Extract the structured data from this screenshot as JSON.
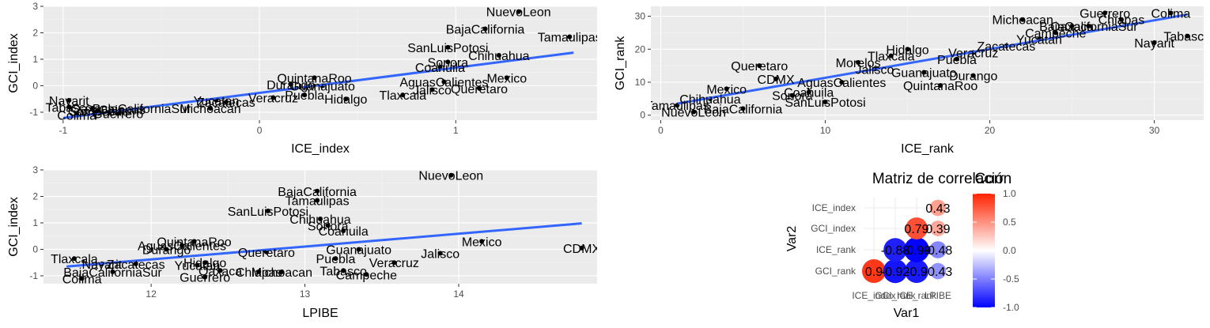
{
  "chart_data": [
    {
      "type": "scatter",
      "xlabel": "ICE_index",
      "ylabel": "GCI_index",
      "xlim": [
        -1.1,
        1.72
      ],
      "ylim": [
        -1.3,
        3.0
      ],
      "xticks": [
        -1,
        0,
        1
      ],
      "yticks": [
        -1,
        0,
        1,
        2,
        3
      ],
      "fit_line": {
        "x": [
          -1.0,
          1.6
        ],
        "y": [
          -1.22,
          1.25
        ]
      },
      "points": [
        {
          "label": "NuevoLeon",
          "x": 1.32,
          "y": 2.8
        },
        {
          "label": "BajaCalifornia",
          "x": 1.15,
          "y": 2.15
        },
        {
          "label": "Tamaulipas",
          "x": 1.58,
          "y": 1.85
        },
        {
          "label": "SanLuisPotosi",
          "x": 0.96,
          "y": 1.45
        },
        {
          "label": "Chihuahua",
          "x": 1.22,
          "y": 1.15
        },
        {
          "label": "Sonora",
          "x": 0.96,
          "y": 0.9
        },
        {
          "label": "Coahuila",
          "x": 0.92,
          "y": 0.7
        },
        {
          "label": "Mexico",
          "x": 1.26,
          "y": 0.3
        },
        {
          "label": "AguasCalientes",
          "x": 0.94,
          "y": 0.15
        },
        {
          "label": "Jalisco",
          "x": 0.88,
          "y": -0.15
        },
        {
          "label": "Queretaro",
          "x": 1.12,
          "y": -0.1
        },
        {
          "label": "Tlaxcala",
          "x": 0.73,
          "y": -0.35
        },
        {
          "label": "QuintanaRoo",
          "x": 0.28,
          "y": 0.3
        },
        {
          "label": "Durango",
          "x": 0.16,
          "y": 0.05
        },
        {
          "label": "Guanajuato",
          "x": 0.32,
          "y": 0.0
        },
        {
          "label": "Puebla",
          "x": 0.23,
          "y": -0.35
        },
        {
          "label": "Hidalgo",
          "x": 0.44,
          "y": -0.5
        },
        {
          "label": "Veracruz",
          "x": 0.07,
          "y": -0.45
        },
        {
          "label": "Yucatan",
          "x": -0.22,
          "y": -0.55
        },
        {
          "label": "Zacatecas",
          "x": -0.17,
          "y": -0.62
        },
        {
          "label": "Michoacan",
          "x": -0.25,
          "y": -0.85
        },
        {
          "label": "Nayarit",
          "x": -0.97,
          "y": -0.55
        },
        {
          "label": "Tabasco",
          "x": -0.97,
          "y": -0.8
        },
        {
          "label": "Oaxaca",
          "x": -0.85,
          "y": -0.85
        },
        {
          "label": "BajaCaliforniaSur",
          "x": -0.6,
          "y": -0.85
        },
        {
          "label": "Chiapas",
          "x": -0.7,
          "y": -0.9
        },
        {
          "label": "Campeche",
          "x": -0.82,
          "y": -0.95
        },
        {
          "label": "Colima",
          "x": -0.93,
          "y": -1.1
        },
        {
          "label": "Guerrero",
          "x": -0.72,
          "y": -1.05
        }
      ]
    },
    {
      "type": "scatter",
      "xlabel": "ICE_rank",
      "ylabel": "GCI_rank",
      "xlim": [
        -0.6,
        33.0
      ],
      "ylim": [
        -1.5,
        33.0
      ],
      "xticks": [
        0,
        10,
        20,
        30
      ],
      "yticks": [
        0,
        10,
        20,
        30
      ],
      "fit_line": {
        "x": [
          1,
          32
        ],
        "y": [
          3.5,
          30.5
        ]
      },
      "points": [
        {
          "label": "Guerrero",
          "x": 27,
          "y": 31
        },
        {
          "label": "Colima",
          "x": 31,
          "y": 31
        },
        {
          "label": "Chiapas",
          "x": 28,
          "y": 29
        },
        {
          "label": "Michoacan",
          "x": 22,
          "y": 29
        },
        {
          "label": "Oaxaca",
          "x": 25,
          "y": 27
        },
        {
          "label": "BajaCaliforniaSur",
          "x": 26,
          "y": 27
        },
        {
          "label": "Campeche",
          "x": 24,
          "y": 25
        },
        {
          "label": "Tabasco",
          "x": 32,
          "y": 24
        },
        {
          "label": "Nayarit",
          "x": 30,
          "y": 22
        },
        {
          "label": "Yucatan",
          "x": 23,
          "y": 23
        },
        {
          "label": "Zacatecas",
          "x": 21,
          "y": 21
        },
        {
          "label": "Hidalgo",
          "x": 15,
          "y": 20
        },
        {
          "label": "Veracruz",
          "x": 19,
          "y": 19
        },
        {
          "label": "Puebla",
          "x": 18,
          "y": 17
        },
        {
          "label": "Tlaxcala",
          "x": 14,
          "y": 18
        },
        {
          "label": "Morelos",
          "x": 12,
          "y": 16
        },
        {
          "label": "Jalisco",
          "x": 13,
          "y": 14
        },
        {
          "label": "Guanajuato",
          "x": 16,
          "y": 13
        },
        {
          "label": "Durango",
          "x": 19,
          "y": 12
        },
        {
          "label": "Queretaro",
          "x": 6,
          "y": 15
        },
        {
          "label": "CDMX",
          "x": 7,
          "y": 11
        },
        {
          "label": "AguasCalientes",
          "x": 11,
          "y": 10
        },
        {
          "label": "QuintanaRoo",
          "x": 17,
          "y": 9
        },
        {
          "label": "Mexico",
          "x": 4,
          "y": 8
        },
        {
          "label": "Coahuila",
          "x": 9,
          "y": 7
        },
        {
          "label": "Sonora",
          "x": 8,
          "y": 6
        },
        {
          "label": "Chihuahua",
          "x": 3,
          "y": 5
        },
        {
          "label": "SanLuisPotosi",
          "x": 10,
          "y": 4
        },
        {
          "label": "Tamaulipas",
          "x": 1,
          "y": 3
        },
        {
          "label": "BajaCalifornia",
          "x": 5,
          "y": 2
        },
        {
          "label": "NuevoLeon",
          "x": 2,
          "y": 1
        }
      ]
    },
    {
      "type": "scatter",
      "xlabel": "LPIBE",
      "ylabel": "GCI_index",
      "xlim": [
        11.3,
        14.9
      ],
      "ylim": [
        -1.3,
        3.0
      ],
      "xticks": [
        12,
        13,
        14
      ],
      "yticks": [
        -1,
        0,
        1,
        2,
        3
      ],
      "fit_line": {
        "x": [
          11.45,
          14.8
        ],
        "y": [
          -0.65,
          0.98
        ]
      },
      "points": [
        {
          "label": "NuevoLeon",
          "x": 13.95,
          "y": 2.8
        },
        {
          "label": "BajaCalifornia",
          "x": 13.08,
          "y": 2.2
        },
        {
          "label": "Tamaulipas",
          "x": 13.08,
          "y": 1.85
        },
        {
          "label": "SanLuisPotosi",
          "x": 12.76,
          "y": 1.45
        },
        {
          "label": "Chihuahua",
          "x": 13.1,
          "y": 1.15
        },
        {
          "label": "Sonora",
          "x": 13.15,
          "y": 0.9
        },
        {
          "label": "Coahuila",
          "x": 13.25,
          "y": 0.7
        },
        {
          "label": "Mexico",
          "x": 14.15,
          "y": 0.3
        },
        {
          "label": "CDMX",
          "x": 14.8,
          "y": 0.05
        },
        {
          "label": "Jalisco",
          "x": 13.88,
          "y": -0.15
        },
        {
          "label": "QuintanaRoo",
          "x": 12.28,
          "y": 0.3
        },
        {
          "label": "AguasCalientes",
          "x": 12.2,
          "y": 0.15
        },
        {
          "label": "Durango",
          "x": 12.1,
          "y": 0.0
        },
        {
          "label": "Guanajuato",
          "x": 13.35,
          "y": 0.0
        },
        {
          "label": "Queretaro",
          "x": 12.75,
          "y": -0.1
        },
        {
          "label": "Puebla",
          "x": 13.2,
          "y": -0.35
        },
        {
          "label": "Veracruz",
          "x": 13.58,
          "y": -0.5
        },
        {
          "label": "Hidalgo",
          "x": 12.35,
          "y": -0.5
        },
        {
          "label": "Tlaxcala",
          "x": 11.5,
          "y": -0.35
        },
        {
          "label": "Zacatecas",
          "x": 11.9,
          "y": -0.55
        },
        {
          "label": "Nayarit",
          "x": 11.68,
          "y": -0.55
        },
        {
          "label": "Yucatan",
          "x": 12.3,
          "y": -0.6
        },
        {
          "label": "Tabasco",
          "x": 13.25,
          "y": -0.8
        },
        {
          "label": "Oaxaca",
          "x": 12.45,
          "y": -0.8
        },
        {
          "label": "Chiapas",
          "x": 12.7,
          "y": -0.85
        },
        {
          "label": "Michoacan",
          "x": 12.85,
          "y": -0.85
        },
        {
          "label": "BajaCaliforniaSur",
          "x": 11.75,
          "y": -0.85
        },
        {
          "label": "Campeche",
          "x": 13.4,
          "y": -0.95
        },
        {
          "label": "Colima",
          "x": 11.55,
          "y": -1.1
        },
        {
          "label": "Guerrero",
          "x": 12.35,
          "y": -1.05
        }
      ]
    },
    {
      "type": "heatmap",
      "title": "Matriz de correlación",
      "xlabel": "Var1",
      "ylabel": "Var2",
      "legend_title": "Corr",
      "legend_ticks": [
        "1.0",
        "0.5",
        "0.0",
        "-0.5",
        "-1.0"
      ],
      "legend_range": [
        -1.0,
        1.0
      ],
      "legend_colors": {
        "high": "#ff2200",
        "mid": "#ffffff",
        "low": "#0000ff"
      },
      "var1_labels": [
        "ICE_index",
        "GCI_rank",
        "ICE_rank",
        "LPIBE"
      ],
      "var2_labels": [
        "GCI_rank",
        "ICE_rank",
        "GCI_index",
        "ICE_index"
      ],
      "cells": [
        {
          "row": 0,
          "col": 0,
          "value": 0.9,
          "label": "0.9"
        },
        {
          "row": 0,
          "col": 1,
          "value": -0.92,
          "label": "-0.92"
        },
        {
          "row": 0,
          "col": 2,
          "value": -0.9,
          "label": "-0.9"
        },
        {
          "row": 0,
          "col": 3,
          "value": -0.43,
          "label": "-0.43"
        },
        {
          "row": 1,
          "col": 1,
          "value": -0.88,
          "label": "-0.88"
        },
        {
          "row": 1,
          "col": 2,
          "value": -0.99,
          "label": "-0.99"
        },
        {
          "row": 1,
          "col": 3,
          "value": -0.48,
          "label": "-0.48"
        },
        {
          "row": 2,
          "col": 2,
          "value": 0.79,
          "label": "0.79"
        },
        {
          "row": 2,
          "col": 3,
          "value": 0.39,
          "label": "0.39"
        },
        {
          "row": 3,
          "col": 3,
          "value": 0.43,
          "label": "0.43"
        }
      ]
    }
  ]
}
